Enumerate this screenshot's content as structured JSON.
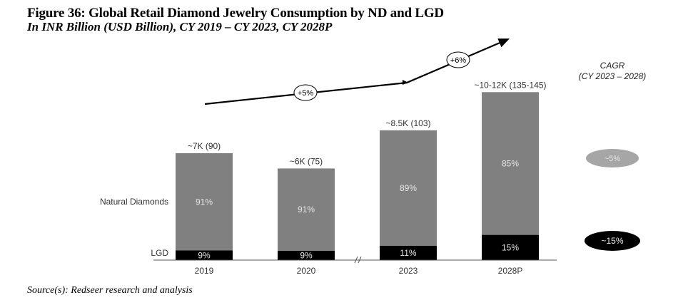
{
  "title": "Figure 36: Global Retail Diamond Jewelry Consumption by ND and LGD",
  "subtitle": "In INR Billion (USD Billion), CY 2019 – CY 2023, CY 2028P",
  "source": "Source(s): Redseer research and analysis",
  "colors": {
    "natural": "#808080",
    "lgd": "#000000",
    "cagr_natural": "#a6a6a6",
    "cagr_lgd": "#000000"
  },
  "chart_data": {
    "type": "bar",
    "stacked": true,
    "title": "Global Retail Diamond Jewelry Consumption by ND and LGD",
    "units": "INR Billion (USD Billion)",
    "categories": [
      "2019",
      "2020",
      "2023",
      "2028P"
    ],
    "totals_inr_billion": [
      7000,
      6000,
      8500,
      11000
    ],
    "total_labels": [
      "~7K (90)",
      "~6K (75)",
      "~8.5K (103)",
      "~10-12K (135-145)"
    ],
    "series": [
      {
        "name": "LGD",
        "share_pct": [
          9,
          9,
          11,
          15
        ],
        "labels": [
          "9%",
          "9%",
          "11%",
          "15%"
        ]
      },
      {
        "name": "Natural Diamonds",
        "share_pct": [
          91,
          91,
          89,
          85
        ],
        "labels": [
          "91%",
          "91%",
          "89%",
          "85%"
        ]
      }
    ],
    "axis_break_between": [
      "2020",
      "2023"
    ],
    "growth_annotations": [
      {
        "from": "2019",
        "to": "2023",
        "label": "+5%"
      },
      {
        "from": "2023",
        "to": "2028P",
        "label": "+6%"
      }
    ],
    "cagr": {
      "title": "CAGR",
      "period": "(CY 2023 – 2028)",
      "natural": "~5%",
      "lgd": "~15%"
    },
    "series_labels": {
      "natural": "Natural Diamonds",
      "lgd": "LGD"
    },
    "ylim": [
      0,
      12000
    ],
    "grid": false
  }
}
